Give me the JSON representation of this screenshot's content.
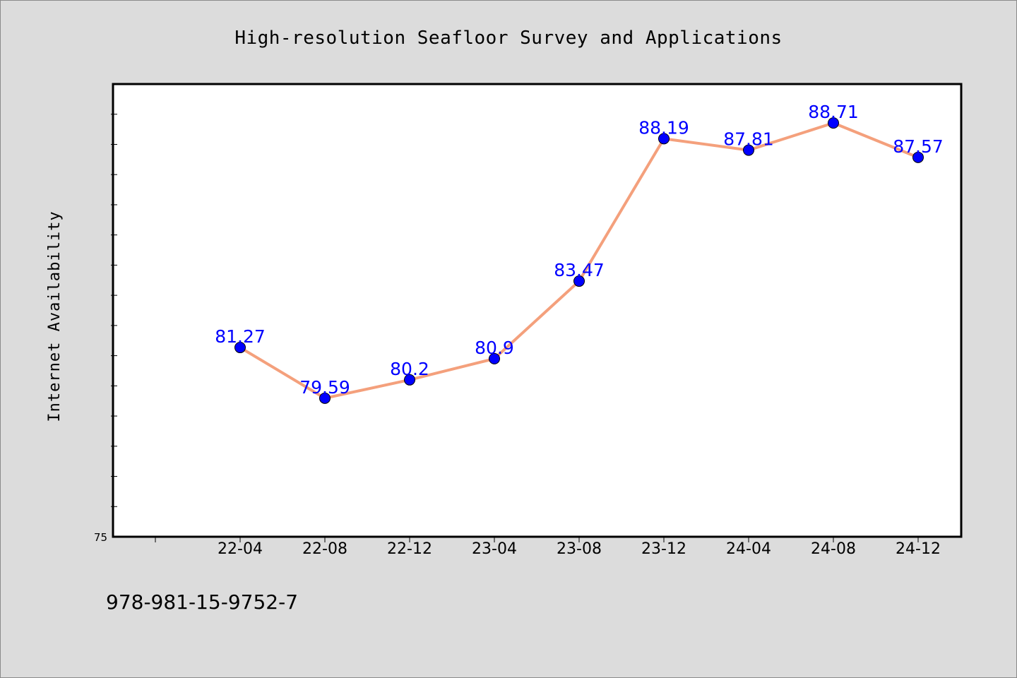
{
  "chart_data": {
    "type": "line",
    "title": "High-resolution Seafloor Survey and Applications",
    "xlabel": "",
    "ylabel": "Internet Availability",
    "categories": [
      "22-04",
      "22-08",
      "22-12",
      "23-04",
      "23-08",
      "23-12",
      "24-04",
      "24-08",
      "24-12"
    ],
    "series": [
      {
        "values": [
          81.27,
          79.59,
          80.2,
          80.9,
          83.47,
          88.19,
          87.81,
          88.71,
          87.57
        ],
        "labels": [
          "81.27",
          "79.59",
          "80.2",
          "80.9",
          "83.47",
          "88.19",
          "87.81",
          "88.71",
          "87.57"
        ]
      }
    ],
    "ylim": [
      75,
      90
    ],
    "yticks": [
      75
    ],
    "ytick_labels": [
      "75"
    ],
    "minor_ytick_step": 1,
    "grid": false,
    "legend": "none",
    "colors": {
      "line": "#f4a07c",
      "marker": "#0000ff",
      "label": "#0000ff",
      "background": "#dcdcdc",
      "plot_background": "#ffffff"
    }
  },
  "footer": {
    "text": "978-981-15-9752-7"
  }
}
